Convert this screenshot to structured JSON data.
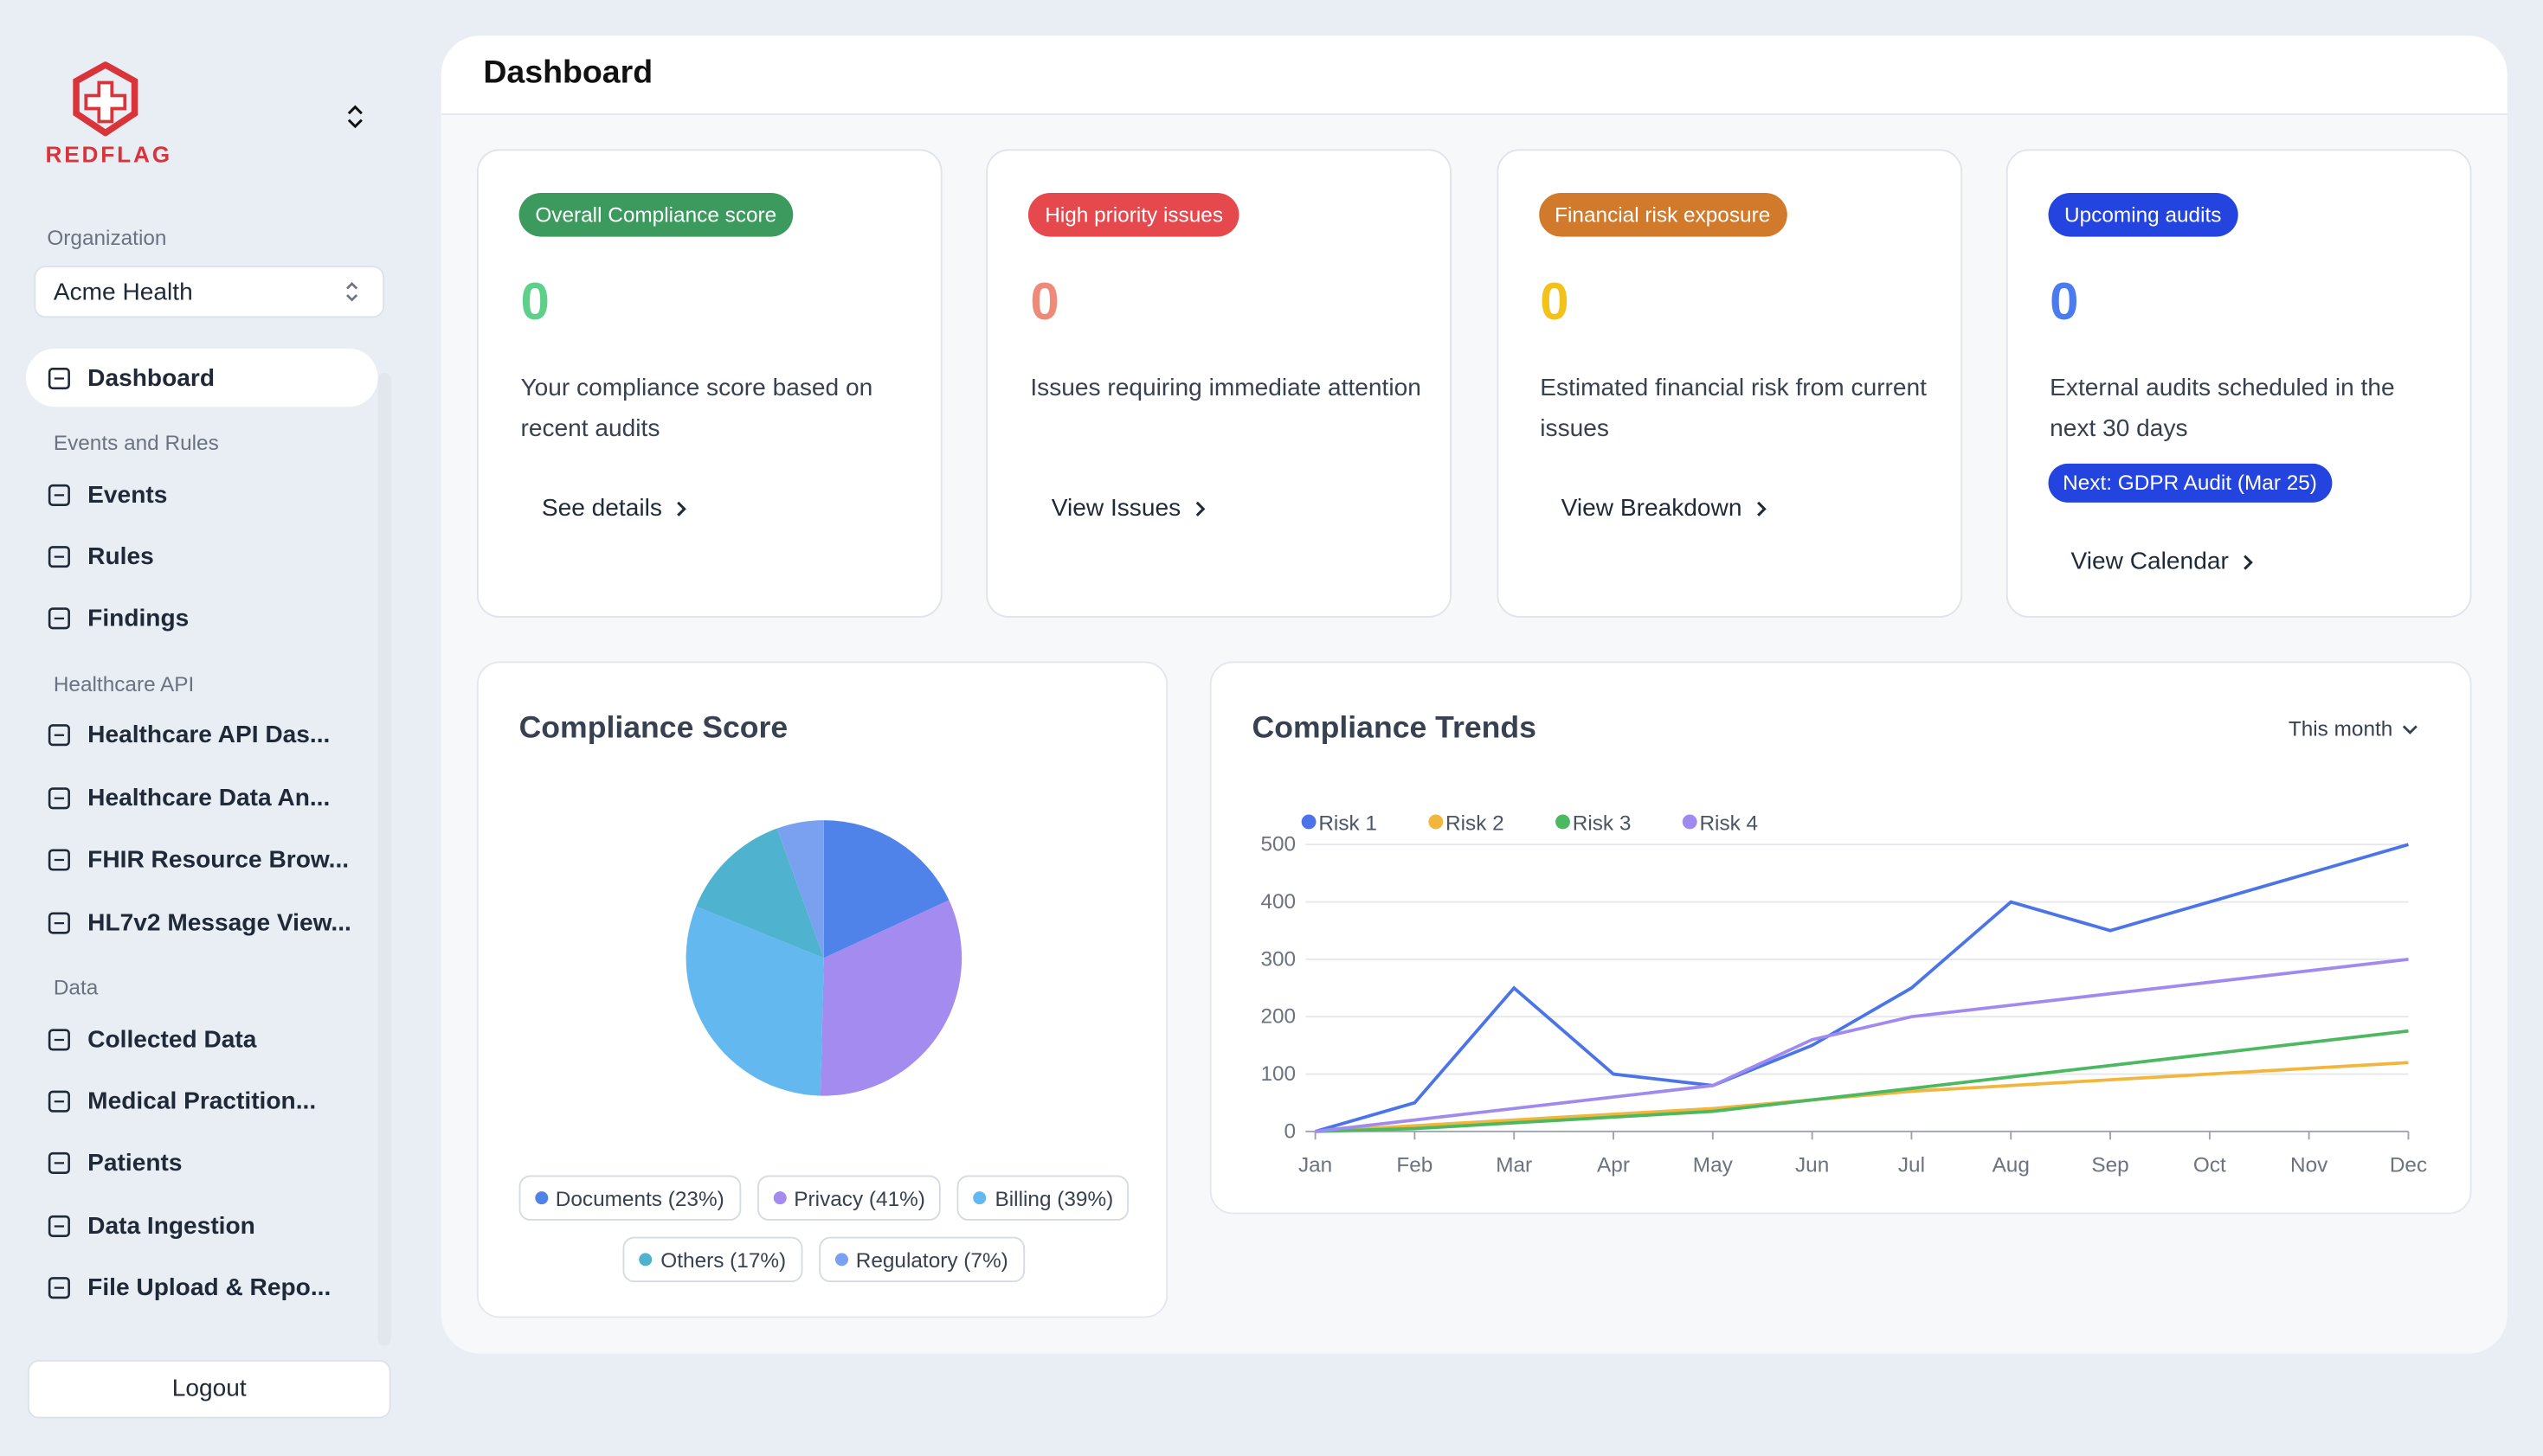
{
  "sidebar": {
    "brand": "REDFLAG",
    "org_label": "Organization",
    "org_value": "Acme Health",
    "groups": [
      {
        "items": [
          "Dashboard"
        ]
      },
      {
        "title": "Events and Rules",
        "items": [
          "Events",
          "Rules",
          "Findings"
        ]
      },
      {
        "title": "Healthcare API",
        "items": [
          "Healthcare API Das...",
          "Healthcare Data An...",
          "FHIR Resource Brow...",
          "HL7v2 Message View..."
        ]
      },
      {
        "title": "Data",
        "items": [
          "Collected Data",
          "Medical Practition...",
          "Patients",
          "Data Ingestion",
          "File Upload & Repo..."
        ]
      }
    ],
    "logout": "Logout"
  },
  "header": {
    "title": "Dashboard"
  },
  "cards": [
    {
      "badge": "Overall Compliance score",
      "badge_color": "#3d9a5e",
      "value": 0,
      "value_color": "#5fd08a",
      "description": "Your compliance score based on recent audits",
      "link": "See details"
    },
    {
      "badge": "High priority issues",
      "badge_color": "#e5484d",
      "value": 0,
      "value_color": "#ef8a78",
      "description": "Issues requiring immediate attention",
      "link": "View Issues"
    },
    {
      "badge": "Financial risk exposure",
      "badge_color": "#d27a2c",
      "value": 0,
      "value_color": "#f2c21b",
      "description": "Estimated financial risk from current issues",
      "link": "View Breakdown"
    },
    {
      "badge": "Upcoming audits",
      "badge_color": "#2444e0",
      "value": 0,
      "value_color": "#4a7bf0",
      "description": "External audits scheduled in the next 30 days",
      "note": "Next: GDPR Audit (Mar 25)",
      "link": "View Calendar"
    }
  ],
  "trends_filter": "This month",
  "chart_data": [
    {
      "type": "pie",
      "title": "Compliance Score",
      "categories": [
        "Documents (23%)",
        "Privacy (41%)",
        "Billing (39%)",
        "Others (17%)",
        "Regulatory (7%)"
      ],
      "values": [
        23,
        41,
        39,
        17,
        7
      ],
      "colors": [
        "#4f83ea",
        "#a38bf0",
        "#63b8f0",
        "#4fb3d0",
        "#7aa0f0"
      ]
    },
    {
      "type": "line",
      "title": "Compliance Trends",
      "categories": [
        "Jan",
        "Feb",
        "Mar",
        "Apr",
        "May",
        "Jun",
        "Jul",
        "Aug",
        "Sep",
        "Oct",
        "Nov",
        "Dec"
      ],
      "series": [
        {
          "name": "Risk 1",
          "color": "#4a74e8",
          "values": [
            0,
            50,
            250,
            100,
            80,
            150,
            250,
            400,
            350,
            400,
            450,
            500
          ]
        },
        {
          "name": "Risk 2",
          "color": "#f2b63d",
          "values": [
            0,
            10,
            20,
            30,
            40,
            55,
            70,
            80,
            90,
            100,
            110,
            120
          ]
        },
        {
          "name": "Risk 3",
          "color": "#4cb860",
          "values": [
            0,
            5,
            15,
            25,
            35,
            55,
            75,
            95,
            115,
            135,
            155,
            175
          ]
        },
        {
          "name": "Risk 4",
          "color": "#a08af0",
          "values": [
            0,
            20,
            40,
            60,
            80,
            160,
            200,
            220,
            240,
            260,
            280,
            300
          ]
        }
      ],
      "ylim": [
        0,
        500
      ],
      "yticks": [
        0,
        100,
        200,
        300,
        400,
        500
      ],
      "grid": true
    }
  ]
}
